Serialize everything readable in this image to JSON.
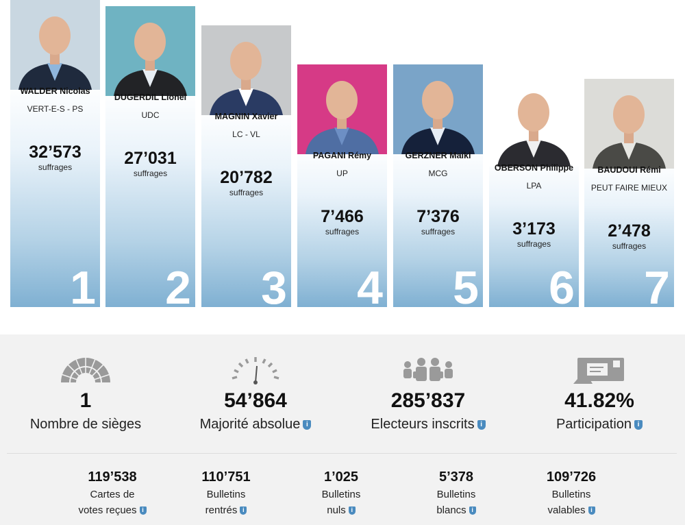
{
  "candidates": [
    {
      "rank": "1",
      "name": "WALDER Nicolas",
      "party": "VERT-E-S - PS",
      "votes": "32’573",
      "votes_label": "suffrages",
      "photo_bg": "#c9d7e1",
      "suit": "#1f2a3d",
      "shirt": "#8fb6dd"
    },
    {
      "rank": "2",
      "name": "DUGERDIL Lionel",
      "party": "UDC",
      "votes": "27’031",
      "votes_label": "suffrages",
      "photo_bg": "#6fb3c2",
      "suit": "#222326",
      "shirt": "#e8eef4"
    },
    {
      "rank": "3",
      "name": "MAGNIN Xavier",
      "party": "LC - VL",
      "votes": "20’782",
      "votes_label": "suffrages",
      "photo_bg": "#c7c9cb",
      "suit": "#2a3b63",
      "shirt": "#ffffff"
    },
    {
      "rank": "4",
      "name": "PAGANI Rémy",
      "party": "UP",
      "votes": "7’466",
      "votes_label": "suffrages",
      "photo_bg": "#d63a86",
      "suit": "#4f6ea3",
      "shirt": "#6d8fc4"
    },
    {
      "rank": "5",
      "name": "GERZNER Maikl",
      "party": "MCG",
      "votes": "7’376",
      "votes_label": "suffrages",
      "photo_bg": "#7aa4c8",
      "suit": "#15213a",
      "shirt": "#e6edf5"
    },
    {
      "rank": "6",
      "name": "OBERSON Philippe",
      "party": "LPA",
      "votes": "3’173",
      "votes_label": "suffrages",
      "photo_bg": "#ffffff",
      "suit": "#2b2b30",
      "shirt": "#f0f0f0"
    },
    {
      "rank": "7",
      "name": "BAUDOUI Rémi",
      "party": "PEUT FAIRE MIEUX",
      "votes": "2’478",
      "votes_label": "suffrages",
      "photo_bg": "#dcdcd8",
      "suit": "#4a4a46",
      "shirt": "#e7e7e3"
    }
  ],
  "stats": [
    {
      "icon": "parliament-icon",
      "value": "1",
      "label": "Nombre de sièges",
      "info": false
    },
    {
      "icon": "gauge-icon",
      "value": "54’864",
      "label": "Majorité absolue",
      "info": true
    },
    {
      "icon": "people-icon",
      "value": "285’837",
      "label": "Electeurs inscrits",
      "info": true
    },
    {
      "icon": "ballot-box-icon",
      "value": "41.82%",
      "label": "Participation",
      "info": true
    }
  ],
  "ballots": [
    {
      "value": "119’538",
      "label_line1": "Cartes de",
      "label_line2": "votes reçues"
    },
    {
      "value": "110’751",
      "label_line1": "Bulletins",
      "label_line2": "rentrés"
    },
    {
      "value": "1’025",
      "label_line1": "Bulletins",
      "label_line2": "nuls"
    },
    {
      "value": "5’378",
      "label_line1": "Bulletins",
      "label_line2": "blancs"
    },
    {
      "value": "109’726",
      "label_line1": "Bulletins",
      "label_line2": "valables"
    }
  ],
  "info_glyph": "i",
  "colors": {
    "accent": "#4a8bbf",
    "column_bottom": "#7fb0d2",
    "panel_bg": "#f2f2f2",
    "icon_grey": "#9a9a9a"
  }
}
